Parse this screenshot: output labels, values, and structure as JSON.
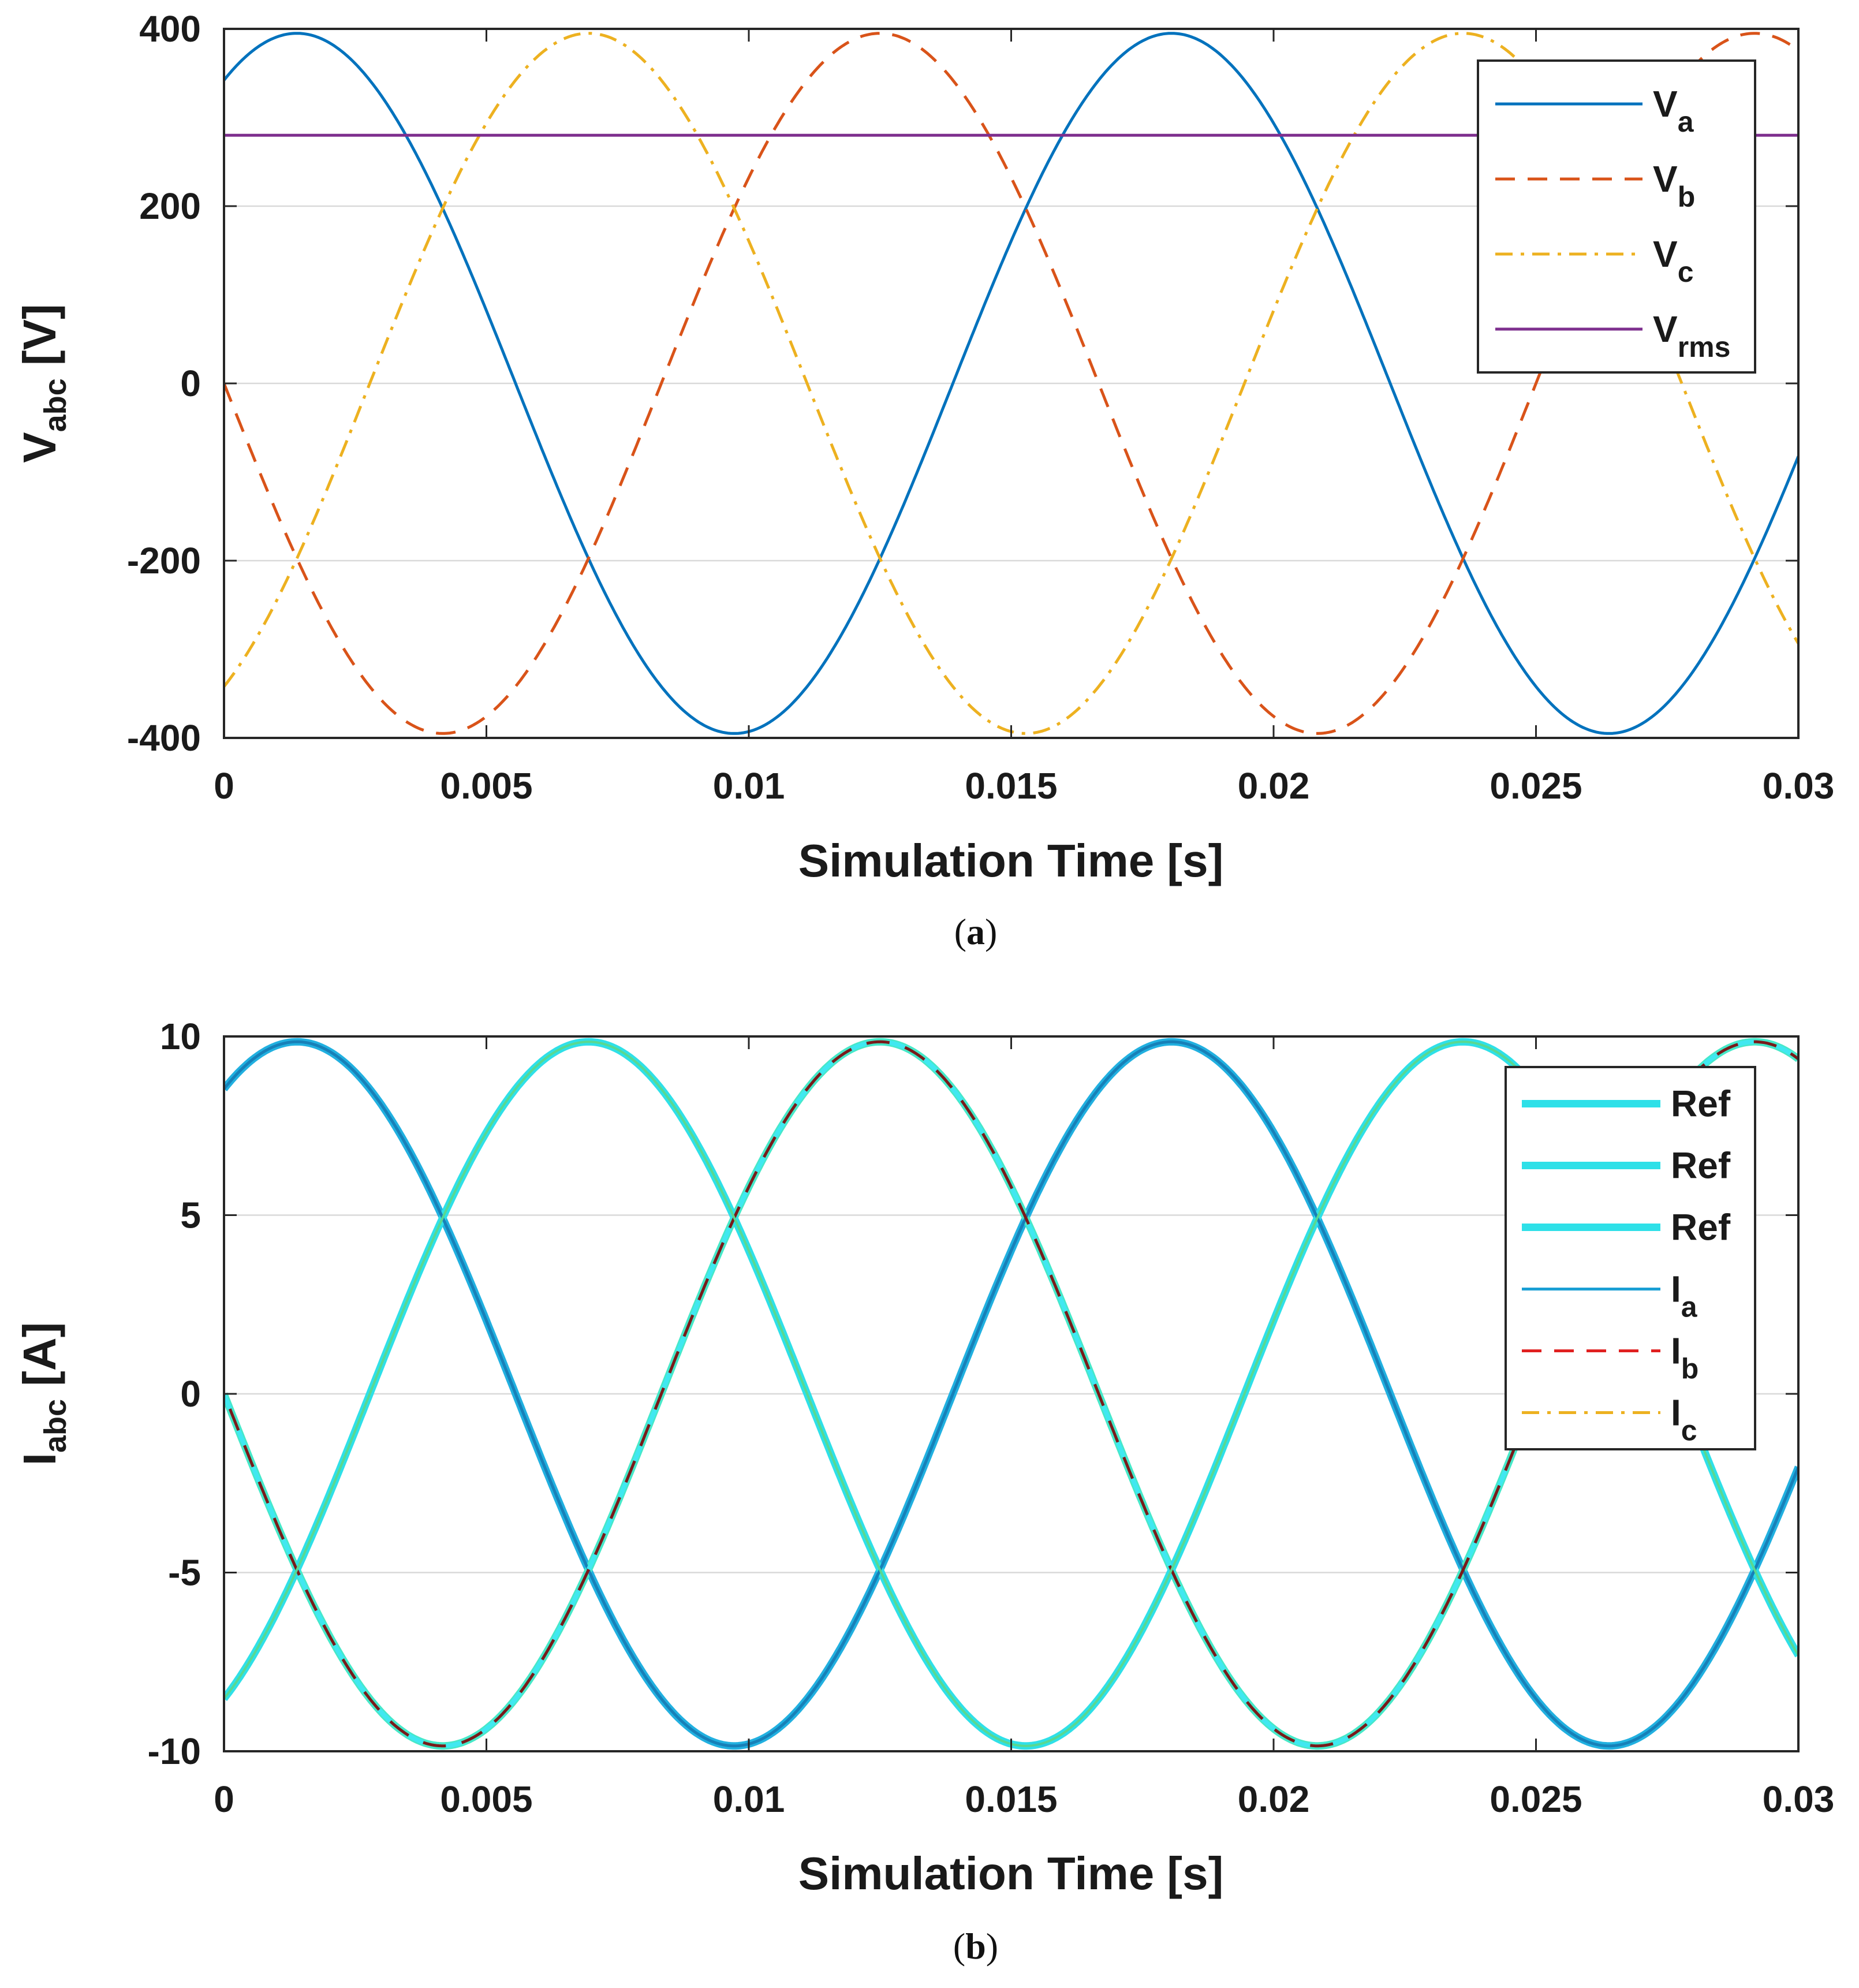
{
  "chart_data": [
    {
      "panel_label": "a",
      "type": "line",
      "xlabel": "Simulation Time [s]",
      "ylabel": "V",
      "ylabel_sub": "abc",
      "ylabel_unit": " [V]",
      "xlim": [
        0,
        0.03
      ],
      "ylim": [
        -400,
        400
      ],
      "xticks": [
        0,
        0.005,
        0.01,
        0.015,
        0.02,
        0.025,
        0.03
      ],
      "xtick_labels": [
        "0",
        "0.005",
        "0.01",
        "0.015",
        "0.02",
        "0.025",
        "0.03"
      ],
      "yticks": [
        -400,
        -200,
        0,
        200,
        400
      ],
      "ytick_labels": [
        "-400",
        "-200",
        "0",
        "200",
        "400"
      ],
      "grid": "horizontal",
      "legend_position": "top-right",
      "series": [
        {
          "name": "V",
          "sub": "a",
          "color": "#0072bd",
          "dash": "solid",
          "amplitude": 395,
          "frequency_hz": 60,
          "phase_deg": -30
        },
        {
          "name": "V",
          "sub": "b",
          "color": "#d95319",
          "dash": "dashed",
          "amplitude": 395,
          "frequency_hz": 60,
          "phase_deg": 90
        },
        {
          "name": "V",
          "sub": "c",
          "color": "#edb120",
          "dash": "dashdot",
          "amplitude": 395,
          "frequency_hz": 60,
          "phase_deg": 210
        },
        {
          "name": "V",
          "sub": "rms",
          "color": "#7e2f8e",
          "dash": "solid",
          "constant": 280
        }
      ]
    },
    {
      "panel_label": "b",
      "type": "line",
      "xlabel": "Simulation Time [s]",
      "ylabel": "I",
      "ylabel_sub": "abc",
      "ylabel_unit": " [A]",
      "xlim": [
        0,
        0.03
      ],
      "ylim": [
        -10,
        10
      ],
      "xticks": [
        0,
        0.005,
        0.01,
        0.015,
        0.02,
        0.025,
        0.03
      ],
      "xtick_labels": [
        "0",
        "0.005",
        "0.01",
        "0.015",
        "0.02",
        "0.025",
        "0.03"
      ],
      "yticks": [
        -10,
        -5,
        0,
        5,
        10
      ],
      "ytick_labels": [
        "-10",
        "-5",
        "0",
        "5",
        "10"
      ],
      "grid": "horizontal",
      "legend_position": "top-right",
      "series": [
        {
          "name": "Ref",
          "sub": "",
          "color": "#2ee0e8",
          "dash": "solid",
          "thick": true,
          "legend_only": true
        },
        {
          "name": "Ref",
          "sub": "",
          "color": "#2ee0e8",
          "dash": "solid",
          "thick": true,
          "legend_only": true
        },
        {
          "name": "Ref",
          "sub": "",
          "color": "#2ee0e8",
          "dash": "solid",
          "thick": true,
          "legend_only": true
        },
        {
          "name": "I",
          "sub": "a",
          "color": "#1a9fd4",
          "dash": "solid",
          "amplitude": 9.85,
          "frequency_hz": 60,
          "phase_deg": -30
        },
        {
          "name": "I",
          "sub": "b",
          "color": "#e02020",
          "dash": "dashed",
          "amplitude": 9.85,
          "frequency_hz": 60,
          "phase_deg": 90
        },
        {
          "name": "I",
          "sub": "c",
          "color": "#edb120",
          "dash": "dashdot",
          "amplitude": 9.85,
          "frequency_hz": 60,
          "phase_deg": 210
        }
      ]
    }
  ]
}
